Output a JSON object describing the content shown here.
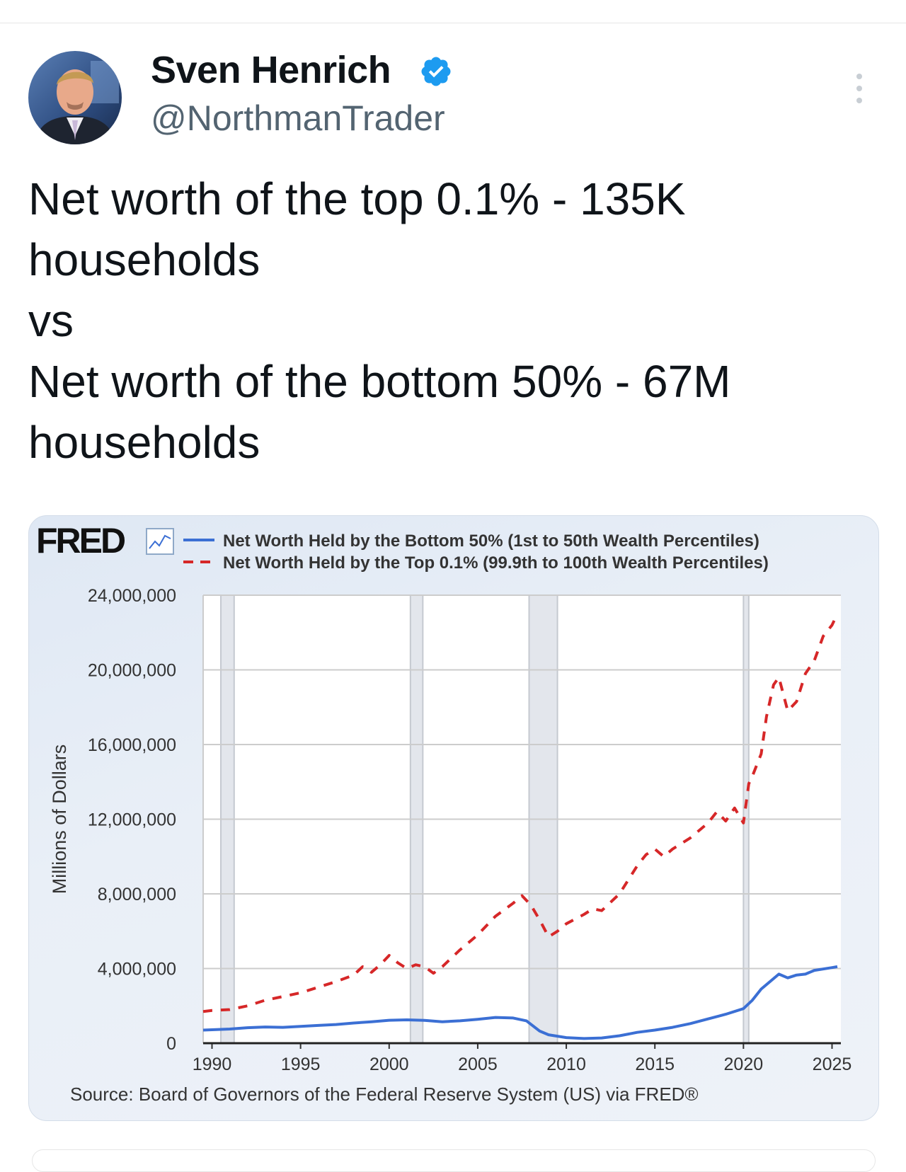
{
  "tweet": {
    "author": {
      "display_name": "Sven Henrich",
      "handle": "@NorthmanTrader",
      "verified": true
    },
    "text_lines": [
      "Net worth of the top 0.1% - 135K",
      "households",
      "vs",
      "Net worth of the bottom 50% - 67M",
      "households"
    ],
    "icons": {
      "verified": "verified-badge-icon",
      "more": "more-options-icon",
      "fred_graph": "fred-chart-icon"
    },
    "colors": {
      "verified_blue": "#1d9bf0",
      "handle_gray": "#536471",
      "text": "#0f1419"
    }
  },
  "chart_data": {
    "type": "line",
    "brand": "FRED",
    "title": "",
    "xlabel": "",
    "ylabel": "Millions of Dollars",
    "xlim": [
      1989.5,
      2025.5
    ],
    "ylim": [
      0,
      24000000
    ],
    "y_ticks": [
      0,
      4000000,
      8000000,
      12000000,
      16000000,
      20000000,
      24000000
    ],
    "y_tick_labels": [
      "0",
      "4,000,000",
      "8,000,000",
      "12,000,000",
      "16,000,000",
      "20,000,000",
      "24,000,000"
    ],
    "x_ticks": [
      1990,
      1995,
      2000,
      2005,
      2010,
      2015,
      2020,
      2025
    ],
    "x_tick_labels": [
      "1990",
      "1995",
      "2000",
      "2005",
      "2010",
      "2015",
      "2020",
      "2025"
    ],
    "grid": true,
    "legend_placement": "top",
    "recessions": [
      [
        1990.5,
        1991.25
      ],
      [
        2001.2,
        2001.9
      ],
      [
        2007.9,
        2009.5
      ],
      [
        2020.0,
        2020.3
      ]
    ],
    "series": [
      {
        "name": "Net Worth Held by the Bottom 50% (1st to 50th Wealth Percentiles)",
        "color": "#3b6fd4",
        "style": "solid",
        "points": [
          [
            1989.5,
            700000
          ],
          [
            1990,
            720000
          ],
          [
            1991,
            760000
          ],
          [
            1992,
            830000
          ],
          [
            1993,
            870000
          ],
          [
            1994,
            850000
          ],
          [
            1995,
            900000
          ],
          [
            1996,
            950000
          ],
          [
            1997,
            1000000
          ],
          [
            1998,
            1080000
          ],
          [
            1999,
            1150000
          ],
          [
            2000,
            1230000
          ],
          [
            2001,
            1250000
          ],
          [
            2002,
            1220000
          ],
          [
            2003,
            1150000
          ],
          [
            2004,
            1200000
          ],
          [
            2005,
            1280000
          ],
          [
            2006,
            1380000
          ],
          [
            2007,
            1350000
          ],
          [
            2007.75,
            1200000
          ],
          [
            2008.5,
            650000
          ],
          [
            2009,
            450000
          ],
          [
            2010,
            300000
          ],
          [
            2011,
            250000
          ],
          [
            2012,
            280000
          ],
          [
            2013,
            400000
          ],
          [
            2014,
            580000
          ],
          [
            2015,
            700000
          ],
          [
            2016,
            850000
          ],
          [
            2017,
            1050000
          ],
          [
            2018,
            1300000
          ],
          [
            2019,
            1550000
          ],
          [
            2020,
            1850000
          ],
          [
            2020.5,
            2300000
          ],
          [
            2021,
            2900000
          ],
          [
            2022,
            3700000
          ],
          [
            2022.5,
            3500000
          ],
          [
            2023,
            3650000
          ],
          [
            2023.5,
            3700000
          ],
          [
            2024,
            3900000
          ],
          [
            2025,
            4050000
          ],
          [
            2025.3,
            4100000
          ]
        ]
      },
      {
        "name": "Net Worth Held by the Top 0.1% (99.9th to 100th Wealth Percentiles)",
        "color": "#d62728",
        "style": "dashed",
        "points": [
          [
            1989.5,
            1700000
          ],
          [
            1990,
            1750000
          ],
          [
            1991,
            1800000
          ],
          [
            1992,
            2000000
          ],
          [
            1993,
            2300000
          ],
          [
            1994,
            2500000
          ],
          [
            1995,
            2700000
          ],
          [
            1996,
            3000000
          ],
          [
            1997,
            3300000
          ],
          [
            1998,
            3650000
          ],
          [
            1998.5,
            4100000
          ],
          [
            1999,
            3800000
          ],
          [
            1999.5,
            4200000
          ],
          [
            2000,
            4700000
          ],
          [
            2000.5,
            4300000
          ],
          [
            2001,
            4000000
          ],
          [
            2001.5,
            4200000
          ],
          [
            2002,
            4100000
          ],
          [
            2002.5,
            3750000
          ],
          [
            2003,
            4100000
          ],
          [
            2004,
            5000000
          ],
          [
            2005,
            5800000
          ],
          [
            2006,
            6800000
          ],
          [
            2007,
            7500000
          ],
          [
            2007.5,
            7900000
          ],
          [
            2008,
            7400000
          ],
          [
            2008.5,
            6600000
          ],
          [
            2009,
            5700000
          ],
          [
            2009.5,
            6000000
          ],
          [
            2010,
            6400000
          ],
          [
            2011,
            6900000
          ],
          [
            2011.5,
            7200000
          ],
          [
            2012,
            7100000
          ],
          [
            2013,
            8000000
          ],
          [
            2014,
            9500000
          ],
          [
            2014.5,
            10100000
          ],
          [
            2015,
            10400000
          ],
          [
            2015.5,
            10000000
          ],
          [
            2016,
            10400000
          ],
          [
            2017,
            11000000
          ],
          [
            2018,
            11800000
          ],
          [
            2018.5,
            12400000
          ],
          [
            2019,
            11900000
          ],
          [
            2019.5,
            12600000
          ],
          [
            2020,
            11800000
          ],
          [
            2020.3,
            13900000
          ],
          [
            2020.5,
            14300000
          ],
          [
            2021,
            15500000
          ],
          [
            2021.3,
            17500000
          ],
          [
            2021.7,
            19200000
          ],
          [
            2022,
            19600000
          ],
          [
            2022.5,
            17800000
          ],
          [
            2023,
            18300000
          ],
          [
            2023.5,
            19800000
          ],
          [
            2024,
            20500000
          ],
          [
            2024.5,
            21800000
          ],
          [
            2025,
            22400000
          ],
          [
            2025.3,
            23000000
          ]
        ]
      }
    ],
    "source": "Source: Board of Governors of the Federal Reserve System (US) via FRED®"
  }
}
